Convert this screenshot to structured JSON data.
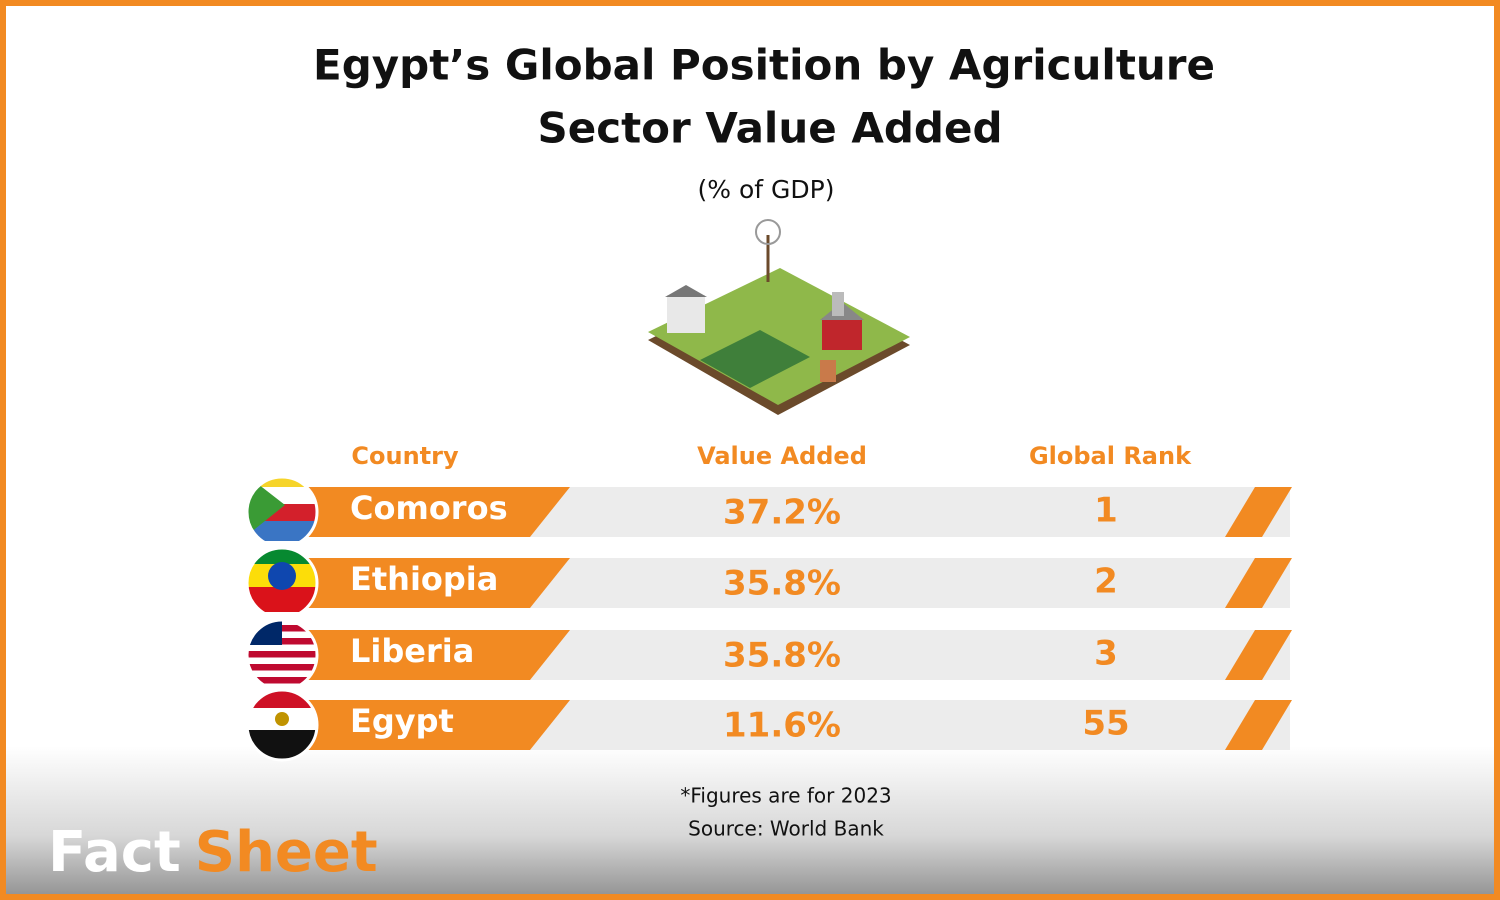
{
  "header": {
    "title_lines": [
      "Egypt’s Global Position by Agriculture",
      "Sector Value Added"
    ],
    "subtitle": "(% of GDP)"
  },
  "table": {
    "columns": [
      "Country",
      "Value Added",
      "Global Rank"
    ],
    "rows": [
      [
        "Comoros",
        "37.2%",
        1
      ],
      [
        "Ethiopia",
        "35.8%",
        2
      ],
      [
        "Liberia",
        "35.8%",
        3
      ],
      [
        "Egypt",
        "11.6%",
        55
      ]
    ]
  },
  "notes": [
    "*Figures are for 2023",
    "Source: World Bank"
  ],
  "brand": {
    "first": "Fact",
    "second": "Sheet"
  }
}
